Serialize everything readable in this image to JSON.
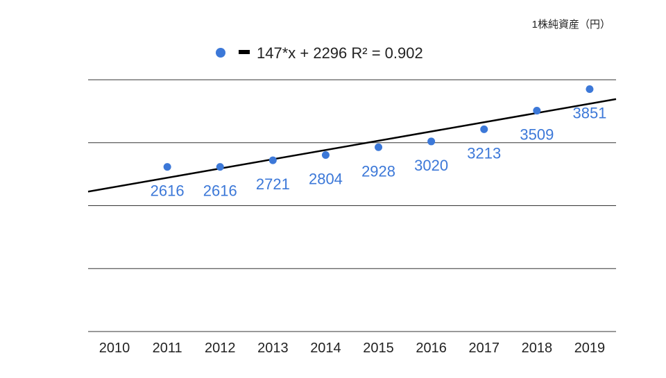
{
  "chart_data": {
    "type": "scatter",
    "unit_label": "1株純資産（円）",
    "categories": [
      "2010",
      "2011",
      "2012",
      "2013",
      "2014",
      "2015",
      "2016",
      "2017",
      "2018",
      "2019"
    ],
    "points": [
      {
        "x": "2011",
        "y": 2616,
        "label": "2616"
      },
      {
        "x": "2012",
        "y": 2616,
        "label": "2616"
      },
      {
        "x": "2013",
        "y": 2721,
        "label": "2721"
      },
      {
        "x": "2014",
        "y": 2804,
        "label": "2804"
      },
      {
        "x": "2015",
        "y": 2928,
        "label": "2928"
      },
      {
        "x": "2016",
        "y": 3020,
        "label": "3020"
      },
      {
        "x": "2017",
        "y": 3213,
        "label": "3213"
      },
      {
        "x": "2018",
        "y": 3509,
        "label": "3509"
      },
      {
        "x": "2019",
        "y": 3851,
        "label": "3851"
      }
    ],
    "trendline": {
      "label": "147*x + 2296 R² = 0.902",
      "slope": 147,
      "intercept": 2296,
      "r_squared": 0.902
    },
    "ylim": [
      0,
      4000
    ],
    "gridlines": true,
    "legend_position": "top",
    "colors": {
      "points": "#3c78d8",
      "labels": "#3c78d8",
      "trendline": "#000000",
      "grid": "#333333"
    }
  }
}
